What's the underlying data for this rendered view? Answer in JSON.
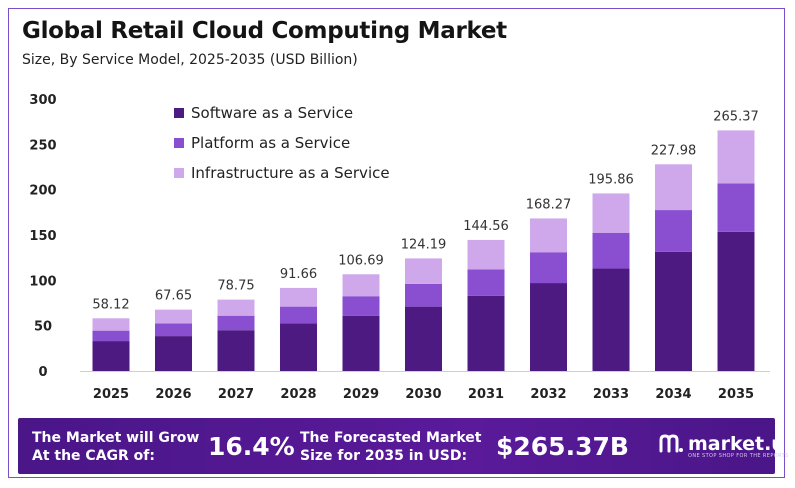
{
  "chart_data": {
    "type": "bar",
    "stacked": true,
    "title": "Global Retail Cloud Computing Market",
    "subtitle": "Size, By Service Model, 2025-2035 (USD Billion)",
    "categories": [
      "2025",
      "2026",
      "2027",
      "2028",
      "2029",
      "2030",
      "2031",
      "2032",
      "2033",
      "2034",
      "2035"
    ],
    "series": [
      {
        "name": "Software as a Service",
        "color": "#4d1a82",
        "values": [
          33.0,
          38.5,
          45.0,
          52.5,
          61.0,
          71.0,
          83.0,
          97.0,
          113.0,
          131.5,
          153.5
        ]
      },
      {
        "name": "Platform as a Service",
        "color": "#8a4fd0",
        "values": [
          11.5,
          14.0,
          16.0,
          18.5,
          21.5,
          25.0,
          29.0,
          34.0,
          39.5,
          46.0,
          53.5
        ]
      },
      {
        "name": "Infrastructure as a Service",
        "color": "#cfa8ec",
        "values": [
          13.62,
          15.15,
          17.75,
          20.66,
          24.19,
          28.19,
          32.56,
          37.27,
          43.36,
          50.48,
          58.37
        ]
      }
    ],
    "totals": [
      "58.12",
      "67.65",
      "78.75",
      "91.66",
      "106.69",
      "124.19",
      "144.56",
      "168.27",
      "195.86",
      "227.98",
      "265.37"
    ],
    "ylim": [
      0,
      300
    ],
    "yticks": [
      0,
      50,
      100,
      150,
      200,
      250,
      300
    ],
    "grid": false,
    "legend_position": "top-left"
  },
  "footer": {
    "cagr_label_line1": "The Market will Grow",
    "cagr_label_line2": "At the CAGR of:",
    "cagr_value": "16.4%",
    "forecast_label_line1": "The Forecasted Market",
    "forecast_label_line2": "Size for 2035 in USD:",
    "forecast_value": "$265.37B",
    "brand": "market.us",
    "brand_tagline": "ONE STOP SHOP FOR THE REPORTS"
  }
}
